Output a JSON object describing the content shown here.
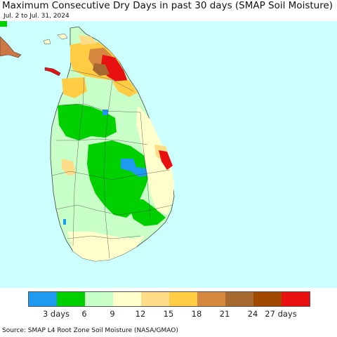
{
  "title": "Maximum Consecutive Dry Days in past 30 days (SMAP Soil Moisture)",
  "subtitle": "Jul. 2 to Jul. 31, 2024",
  "source": "Source: SMAP L4 Root Zone Soil Moisture (NASA/GMAO)",
  "colors": {
    "ocean": "#ccffff",
    "land_other": "#cc7744",
    "boundary": "#444444"
  },
  "legend": {
    "colors": [
      "#1e9bf0",
      "#00d000",
      "#c8ffc8",
      "#ffffcc",
      "#ffdd88",
      "#ffcc44",
      "#d68840",
      "#a66a30",
      "#a04800",
      "#e81010"
    ],
    "labels": [
      "3 days",
      "6",
      "9",
      "12",
      "15",
      "18",
      "21",
      "24",
      "27 days"
    ]
  }
}
